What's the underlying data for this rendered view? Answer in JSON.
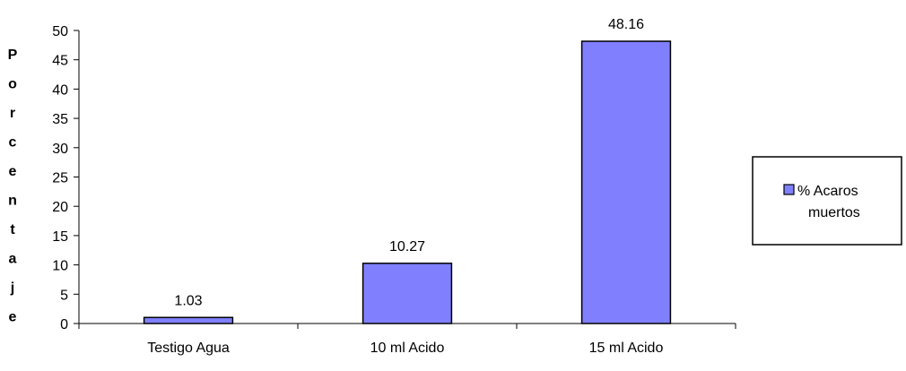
{
  "chart_data": {
    "type": "bar",
    "title": "",
    "xlabel": "",
    "ylabel": "Porcentaje",
    "categories": [
      "Testigo Agua",
      "10 ml Acido",
      "15 ml Acido"
    ],
    "series": [
      {
        "name": "% Acaros muertos",
        "values": [
          1.03,
          10.27,
          48.16
        ]
      }
    ],
    "data_labels": [
      "1.03",
      "10.27",
      "48.16"
    ],
    "ylim": [
      0,
      50
    ],
    "yticks": [
      0,
      5,
      10,
      15,
      20,
      25,
      30,
      35,
      40,
      45,
      50
    ],
    "grid": false,
    "legend_position": "right",
    "legend_lines": [
      "% Acaros",
      "muertos"
    ],
    "colors": {
      "bar_fill": "#8080ff",
      "bar_stroke": "#000000",
      "axis": "#000000",
      "background": "#ffffff"
    }
  }
}
